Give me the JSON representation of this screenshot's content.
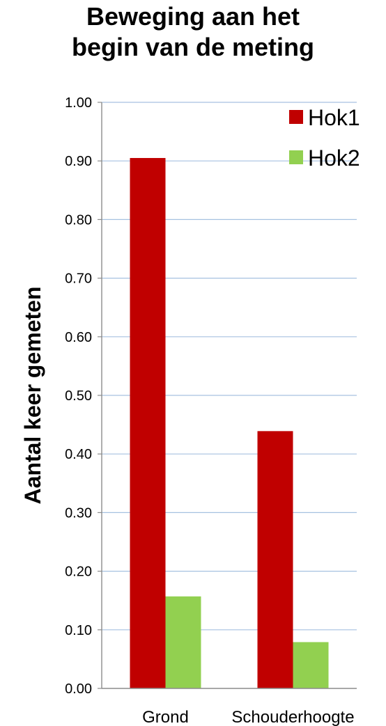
{
  "chart_data": {
    "type": "bar",
    "title_lines": [
      "Beweging aan het",
      "begin van de meting"
    ],
    "xlabel": "",
    "ylabel": "Aantal keer gemeten",
    "categories": [
      "Grond",
      "Schouderhoogte"
    ],
    "series": [
      {
        "name": "Hok1",
        "color": "#c00000",
        "values": [
          0.905,
          0.439
        ]
      },
      {
        "name": "Hok2",
        "color": "#92d050",
        "values": [
          0.157,
          0.079
        ]
      }
    ],
    "ylim": [
      0,
      1.0
    ],
    "yticks": [
      "0.00",
      "0.10",
      "0.20",
      "0.30",
      "0.40",
      "0.50",
      "0.60",
      "0.70",
      "0.80",
      "0.90",
      "1.00"
    ],
    "grid": true,
    "legend_position": "top-right",
    "gridline_color": "#a6c1e0",
    "axis_color": "#8c8c8c"
  }
}
